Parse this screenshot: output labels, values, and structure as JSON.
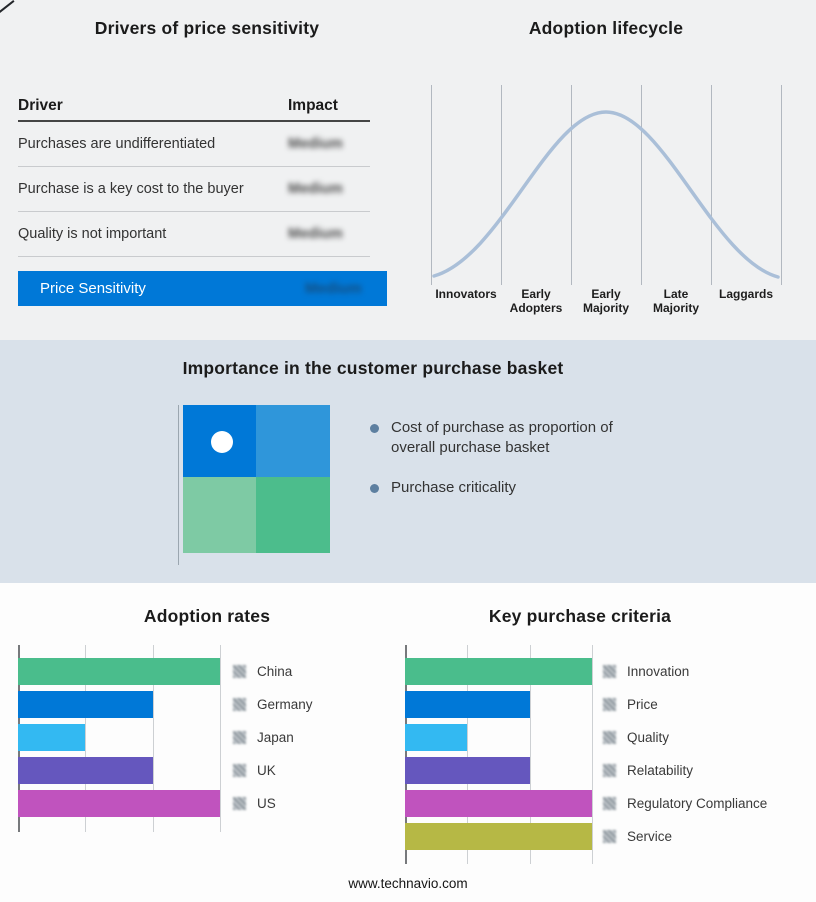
{
  "page": {
    "footer_url": "www.technavio.com"
  },
  "drivers_panel": {
    "title": "Drivers of price sensitivity",
    "columns": {
      "driver": "Driver",
      "impact": "Impact"
    },
    "rows": [
      {
        "driver": "Purchases are undifferentiated",
        "impact": "Medium"
      },
      {
        "driver": "Purchase is a key cost to the buyer",
        "impact": "Medium"
      },
      {
        "driver": "Quality is not important",
        "impact": "Medium"
      }
    ],
    "summary_row": {
      "label": "Price Sensitivity",
      "impact": "Medium",
      "highlight_color": "#0078d7"
    },
    "impact_values_blurred": true
  },
  "basket_panel": {
    "title": "Importance in the customer purchase basket",
    "bullets": [
      "Cost of purchase as proportion of overall purchase basket",
      "Purchase criticality"
    ],
    "quad_colors": {
      "top_left": "#0078d7",
      "top_right": "#2f96da",
      "bottom_left": "#7ecaa4",
      "bottom_right": "#4cbd8c"
    }
  },
  "chart_data": [
    {
      "id": "adoption_lifecycle",
      "type": "line",
      "shape": "bell-curve",
      "title": "Adoption lifecycle",
      "categories": [
        "Innovators",
        "Early Adopters",
        "Early Majority",
        "Late Majority",
        "Laggards"
      ],
      "values": [
        5,
        52,
        100,
        52,
        5
      ],
      "ylim": [
        0,
        100
      ],
      "color": "#aabfd8",
      "grid": "vertical",
      "legend_position": "none"
    },
    {
      "id": "adoption_rates",
      "type": "bar",
      "orientation": "horizontal",
      "title": "Adoption rates",
      "categories": [
        "China",
        "Germany",
        "Japan",
        "UK",
        "US"
      ],
      "values": [
        3,
        2,
        1,
        2,
        3
      ],
      "xlim": [
        0,
        3
      ],
      "colors": [
        "#4abd8c",
        "#0078d7",
        "#33b9f2",
        "#6557be",
        "#c053be"
      ],
      "grid": "vertical",
      "legend_position": "right",
      "value_scale": "relative (no axis numbers shown)"
    },
    {
      "id": "key_purchase_criteria",
      "type": "bar",
      "orientation": "horizontal",
      "title": "Key purchase criteria",
      "categories": [
        "Innovation",
        "Price",
        "Quality",
        "Relatability",
        "Regulatory Compliance",
        "Service"
      ],
      "values": [
        3,
        2,
        1,
        2,
        3,
        3
      ],
      "xlim": [
        0,
        3
      ],
      "colors": [
        "#4abd8c",
        "#0078d7",
        "#33b9f2",
        "#6557be",
        "#c053be",
        "#b6b845"
      ],
      "grid": "vertical",
      "legend_position": "right",
      "value_scale": "relative (no axis numbers shown)"
    }
  ]
}
